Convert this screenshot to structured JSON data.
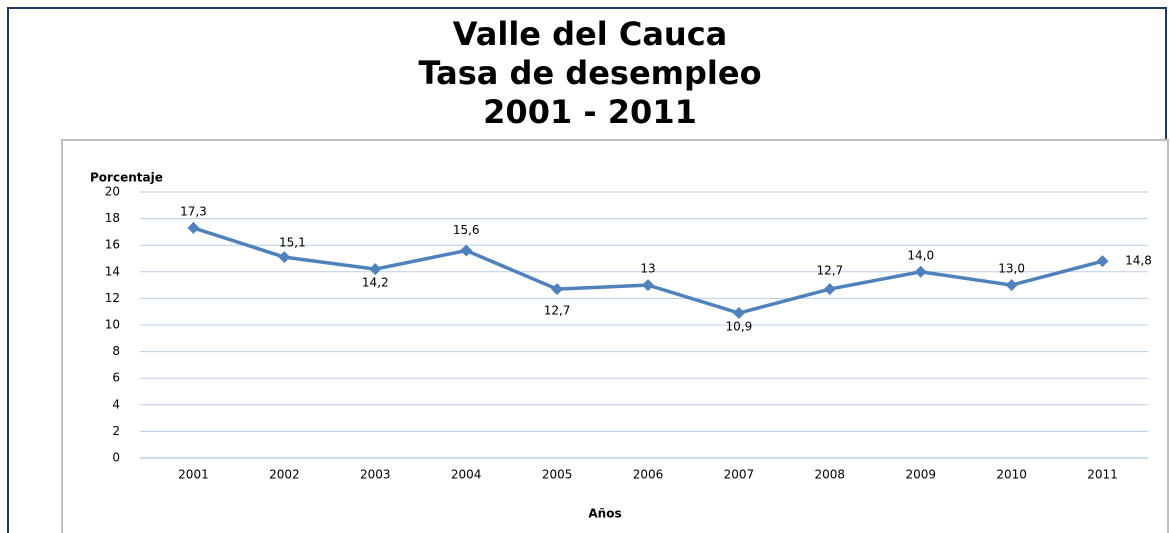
{
  "chart_data": {
    "type": "line",
    "title": [
      "Valle del Cauca",
      "Tasa de desempleo",
      "2001  -  2011"
    ],
    "y_label": "Porcentaje",
    "x_label": "Años",
    "categories": [
      "2001",
      "2002",
      "2003",
      "2004",
      "2005",
      "2006",
      "2007",
      "2008",
      "2009",
      "2010",
      "2011"
    ],
    "series": [
      {
        "name": "Tasa de desempleo",
        "color": "#4f81bd",
        "values": [
          17.3,
          15.1,
          14.2,
          15.6,
          12.7,
          13,
          10.9,
          12.7,
          14.0,
          13.0,
          14.8
        ],
        "value_labels": [
          "17,3",
          "15,1",
          "14,2",
          "15,6",
          "12,7",
          "13",
          "10,9",
          "12,7",
          "14,0",
          "13,0",
          "14,8"
        ]
      }
    ],
    "ylim": [
      0,
      20
    ],
    "yticks": [
      0,
      2,
      4,
      6,
      8,
      10,
      12,
      14,
      16,
      18,
      20
    ],
    "grid": true
  }
}
